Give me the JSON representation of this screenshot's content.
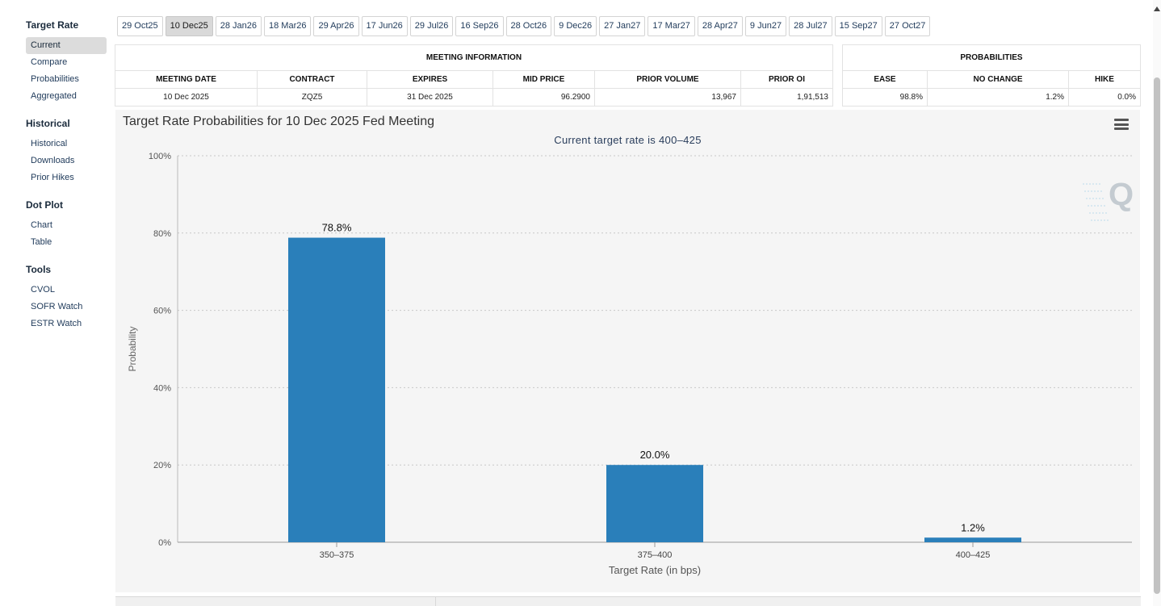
{
  "sidebar": {
    "sections": [
      {
        "title": "Target Rate",
        "items": [
          "Current",
          "Compare",
          "Probabilities",
          "Aggregated"
        ],
        "active": 0
      },
      {
        "title": "Historical",
        "items": [
          "Historical",
          "Downloads",
          "Prior Hikes"
        ],
        "active": -1
      },
      {
        "title": "Dot Plot",
        "items": [
          "Chart",
          "Table"
        ],
        "active": -1
      },
      {
        "title": "Tools",
        "items": [
          "CVOL",
          "SOFR Watch",
          "ESTR Watch"
        ],
        "active": -1
      }
    ]
  },
  "tabs": {
    "items": [
      "29 Oct25",
      "10 Dec25",
      "28 Jan26",
      "18 Mar26",
      "29 Apr26",
      "17 Jun26",
      "29 Jul26",
      "16 Sep26",
      "28 Oct26",
      "9 Dec26",
      "27 Jan27",
      "17 Mar27",
      "28 Apr27",
      "9 Jun27",
      "28 Jul27",
      "15 Sep27",
      "27 Oct27"
    ],
    "active": 1
  },
  "meeting_info": {
    "section_title": "MEETING INFORMATION",
    "headers": [
      "MEETING DATE",
      "CONTRACT",
      "EXPIRES",
      "MID PRICE",
      "PRIOR VOLUME",
      "PRIOR OI"
    ],
    "values": [
      "10 Dec 2025",
      "ZQZ5",
      "31 Dec 2025",
      "96.2900",
      "13,967",
      "1,91,513"
    ]
  },
  "probabilities": {
    "section_title": "PROBABILITIES",
    "headers": [
      "EASE",
      "NO CHANGE",
      "HIKE"
    ],
    "values": [
      "98.8%",
      "1.2%",
      "0.0%"
    ]
  },
  "colors": {
    "bar": "#2a7fba",
    "grid": "#c8c8c8"
  },
  "chart_data": {
    "type": "bar",
    "title": "Target Rate Probabilities for 10 Dec 2025 Fed Meeting",
    "subtitle": "Current target rate is 400–425",
    "categories": [
      "350–375",
      "375–400",
      "400–425"
    ],
    "values": [
      78.8,
      20.0,
      1.2
    ],
    "data_labels": [
      "78.8%",
      "20.0%",
      "1.2%"
    ],
    "xlabel": "Target Rate (in bps)",
    "ylabel": "Probability",
    "ylim": [
      0,
      100
    ],
    "yticks": [
      0,
      20,
      40,
      60,
      80,
      100
    ],
    "ytick_labels": [
      "0%",
      "20%",
      "40%",
      "60%",
      "80%",
      "100%"
    ],
    "grid": true
  }
}
